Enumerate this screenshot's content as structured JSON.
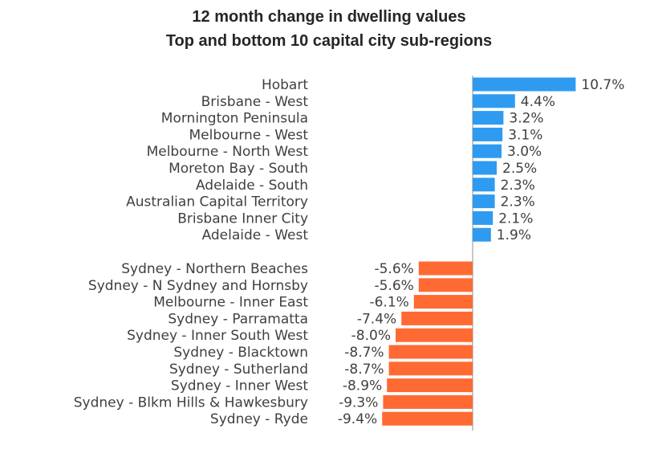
{
  "chart_data": {
    "type": "bar",
    "orientation": "horizontal",
    "title": "12 month change in dwelling values",
    "subtitle": "Top and bottom 10 capital city sub-regions",
    "xlabel": "",
    "ylabel": "",
    "grid": false,
    "legend": "none",
    "value_format": "percent, 1 decimal",
    "colors": {
      "positive": "#2E9BF0",
      "negative": "#FF6A33",
      "axis": "#C8C8C8"
    },
    "groups": [
      {
        "name": "top",
        "categories": [
          "Hobart",
          "Brisbane - West",
          "Mornington Peninsula",
          "Melbourne - West",
          "Melbourne - North West",
          "Moreton Bay - South",
          "Adelaide - South",
          "Australian Capital Territory",
          "Brisbane Inner City",
          "Adelaide - West"
        ],
        "values": [
          10.7,
          4.4,
          3.2,
          3.1,
          3.0,
          2.5,
          2.3,
          2.3,
          2.1,
          1.9
        ],
        "labels": [
          "10.7%",
          "4.4%",
          "3.2%",
          "3.1%",
          "3.0%",
          "2.5%",
          "2.3%",
          "2.3%",
          "2.1%",
          "1.9%"
        ]
      },
      {
        "name": "bottom",
        "categories": [
          "Sydney - Northern Beaches",
          "Sydney - N Sydney and Hornsby",
          "Melbourne - Inner East",
          "Sydney - Parramatta",
          "Sydney - Inner South West",
          "Sydney - Blacktown",
          "Sydney - Sutherland",
          "Sydney - Inner West",
          "Sydney - Blkm Hills & Hawkesbury",
          "Sydney - Ryde"
        ],
        "values": [
          -5.6,
          -5.6,
          -6.1,
          -7.4,
          -8.0,
          -8.7,
          -8.7,
          -8.9,
          -9.3,
          -9.4
        ],
        "labels": [
          "-5.6%",
          "-5.6%",
          "-6.1%",
          "-7.4%",
          "-8.0%",
          "-8.7%",
          "-8.7%",
          "-8.9%",
          "-9.3%",
          "-9.4%"
        ]
      }
    ]
  }
}
